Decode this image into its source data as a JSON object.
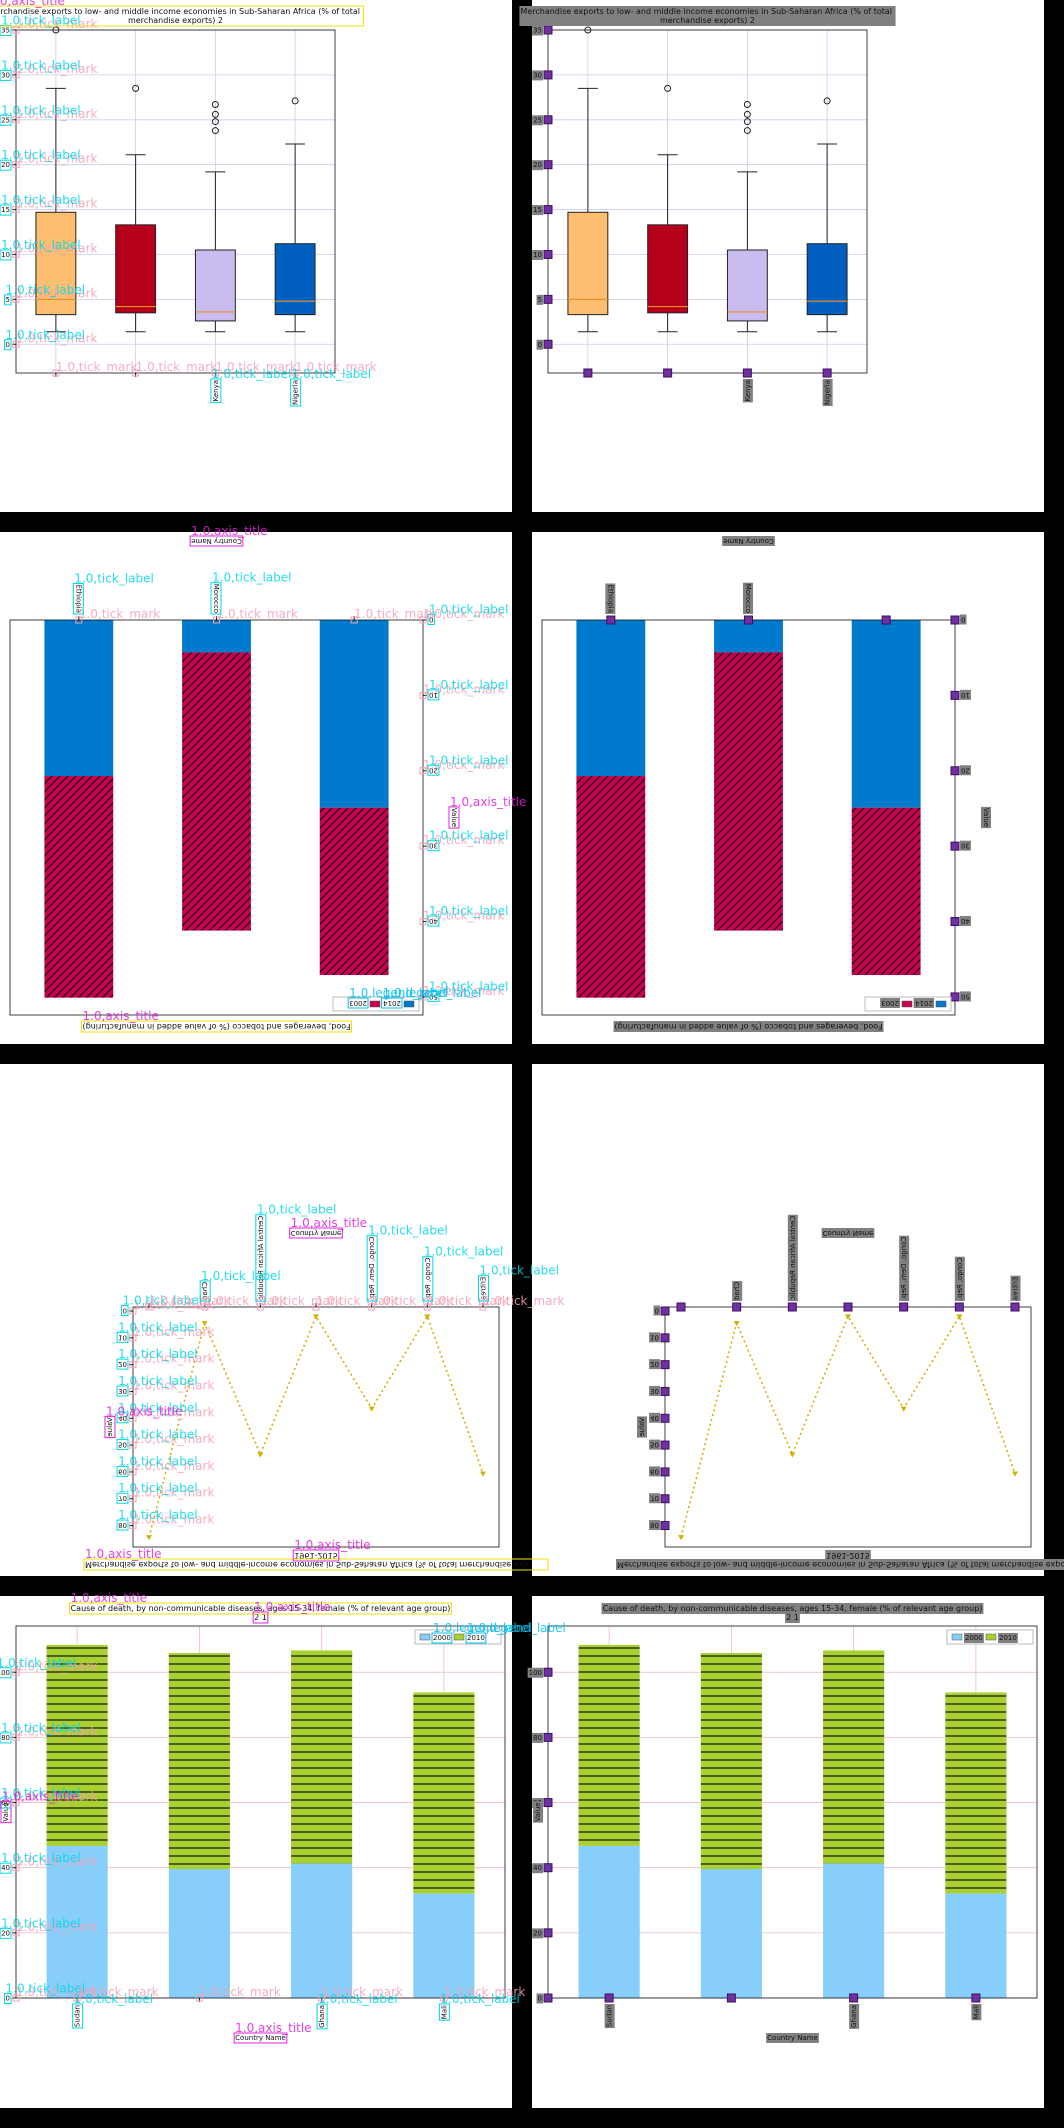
{
  "overlay_labels": {
    "tick_label": "1.0,tick_label",
    "tick_mark": "1.0,tick_mark",
    "axis_title": "1.0,axis_title",
    "legend_label": "1.0,legend_label"
  },
  "chart_data": [
    {
      "type": "box",
      "title": "Merchandise exports to low- and middle income economies in Sub-Saharan Africa (% of total merchandise exports) 2",
      "categories": [
        null,
        null,
        "Kenya",
        "Nigeria"
      ],
      "boxes": [
        {
          "whislo": 1.4,
          "q1": 3.3,
          "med": 5,
          "q3": 14.7,
          "whishi": 28.5,
          "fliers": [
            35
          ]
        },
        {
          "whislo": 1.4,
          "q1": 3.5,
          "med": 4.2,
          "q3": 13.3,
          "whishi": 21.1,
          "fliers": [
            28.5
          ]
        },
        {
          "whislo": 1.4,
          "q1": 2.6,
          "med": 3.6,
          "q3": 10.5,
          "whishi": 19.2,
          "fliers": [
            26.7,
            25.6,
            24.8,
            23.8
          ]
        },
        {
          "whislo": 1.4,
          "q1": 3.3,
          "med": 4.8,
          "q3": 11.2,
          "whishi": 22.3,
          "fliers": [
            27.1
          ]
        }
      ],
      "colors": [
        "#fdbf6f",
        "#b5001b",
        "#cbbcf0",
        "#005fbf"
      ],
      "median_color": "#e8902a",
      "ylim": [
        -3.2,
        35
      ],
      "yticks": [
        0,
        5,
        10,
        15,
        20,
        25,
        30,
        35
      ],
      "grid": true,
      "grid_color": "#c8cdf5"
    },
    {
      "type": "bar",
      "stacked": true,
      "title": "Food, beverages and tobacco (% of value added in manufacturing)",
      "x_label": "Country Name",
      "y_label": "Value",
      "categories": [
        null,
        "Morocco",
        "Ethiopia"
      ],
      "series": [
        {
          "name": "2014",
          "color": "#007acc",
          "values": [
            24.9,
            4.3,
            20.7
          ]
        },
        {
          "name": "2003",
          "color": "#c8004e",
          "hatch": "diagonal",
          "values": [
            22.2,
            36.9,
            29.4
          ]
        }
      ],
      "ylim": [
        0,
        52.4
      ],
      "yticks": [
        0,
        10,
        20,
        30,
        40,
        50
      ],
      "grid": false,
      "legend": "upper left",
      "orientation": "rotated"
    },
    {
      "type": "line",
      "title": "Merchandise exports to low- and middle-income economies in Sub-Saharan Africa (% of total merchandise exports)",
      "subtitle": "1961-2015",
      "x_label": "Country Name",
      "y_label": "Value",
      "categories": [
        null,
        "Chad",
        "Central African Republic",
        null,
        "Congo, Dem. Rep.",
        "Congo, Rep.",
        "Eritrea"
      ],
      "series": [
        {
          "name": "Value",
          "color": "#d4b000",
          "values": [
            84.3,
            4.5,
            53.5,
            2,
            36.4,
            2,
            60.6
          ]
        }
      ],
      "ylim": [
        -1.5,
        88
      ],
      "yticks": [
        0,
        10,
        20,
        30,
        40,
        50,
        60,
        70,
        80
      ],
      "grid": false,
      "orientation": "flipped"
    },
    {
      "type": "bar",
      "stacked": true,
      "title": "Cause of death, by non-communicable diseases, ages 15-34, female (% of relevant age group)",
      "subtitle": "2 1",
      "x_label": "Country Name",
      "y_label": "Value",
      "categories": [
        "Sudan",
        null,
        "Ghana",
        "Mali"
      ],
      "series": [
        {
          "name": "2000",
          "color": "#87cefa",
          "values": [
            46.7,
            39.6,
            41.3,
            32.1
          ]
        },
        {
          "name": "2010",
          "color": "#a8d030",
          "hatch": "horizontal",
          "values": [
            61.7,
            66.3,
            65.4,
            61.7
          ]
        }
      ],
      "ylim": [
        0,
        114.2
      ],
      "yticks": [
        0,
        20,
        40,
        60,
        80,
        100
      ],
      "grid": true,
      "grid_color": "#f0b8c8",
      "legend": "upper right"
    }
  ]
}
